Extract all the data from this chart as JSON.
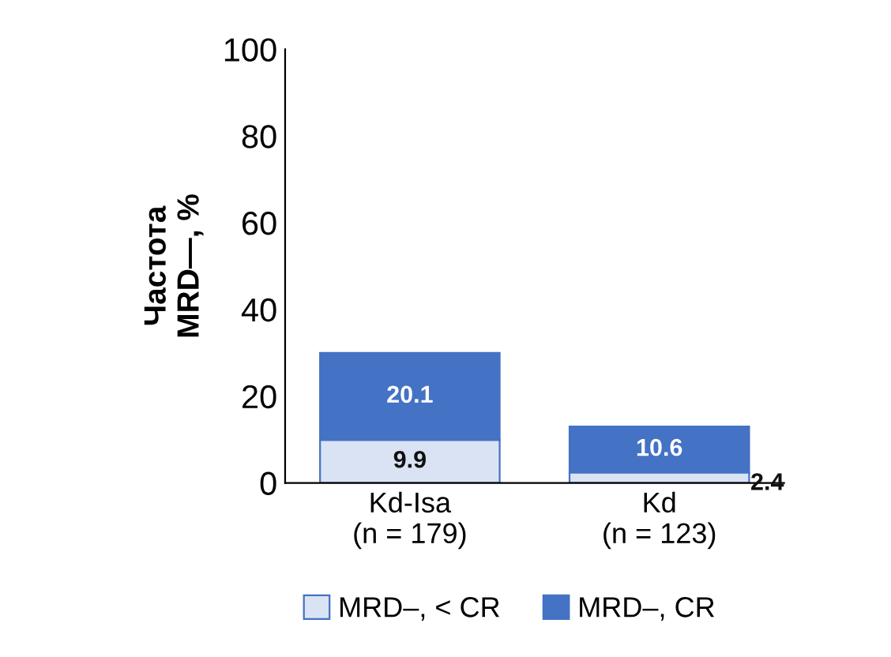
{
  "chart_data": {
    "type": "bar",
    "stacked": true,
    "ylabel": "Частота\nMRD—, %",
    "categories": [
      "Kd-Isa\n(n = 179)",
      "Kd\n(n = 123)"
    ],
    "series": [
      {
        "name": "MRD–, < CR",
        "color": "#dae3f3",
        "values": [
          9.9,
          2.4
        ]
      },
      {
        "name": "MRD–, CR",
        "color": "#4472c4",
        "values": [
          20.1,
          10.6
        ]
      }
    ],
    "ylim": [
      0,
      100
    ],
    "yticks": [
      0,
      20,
      40,
      60,
      80,
      100
    ],
    "grid": false,
    "legend": "bottom",
    "data_labels": true
  }
}
